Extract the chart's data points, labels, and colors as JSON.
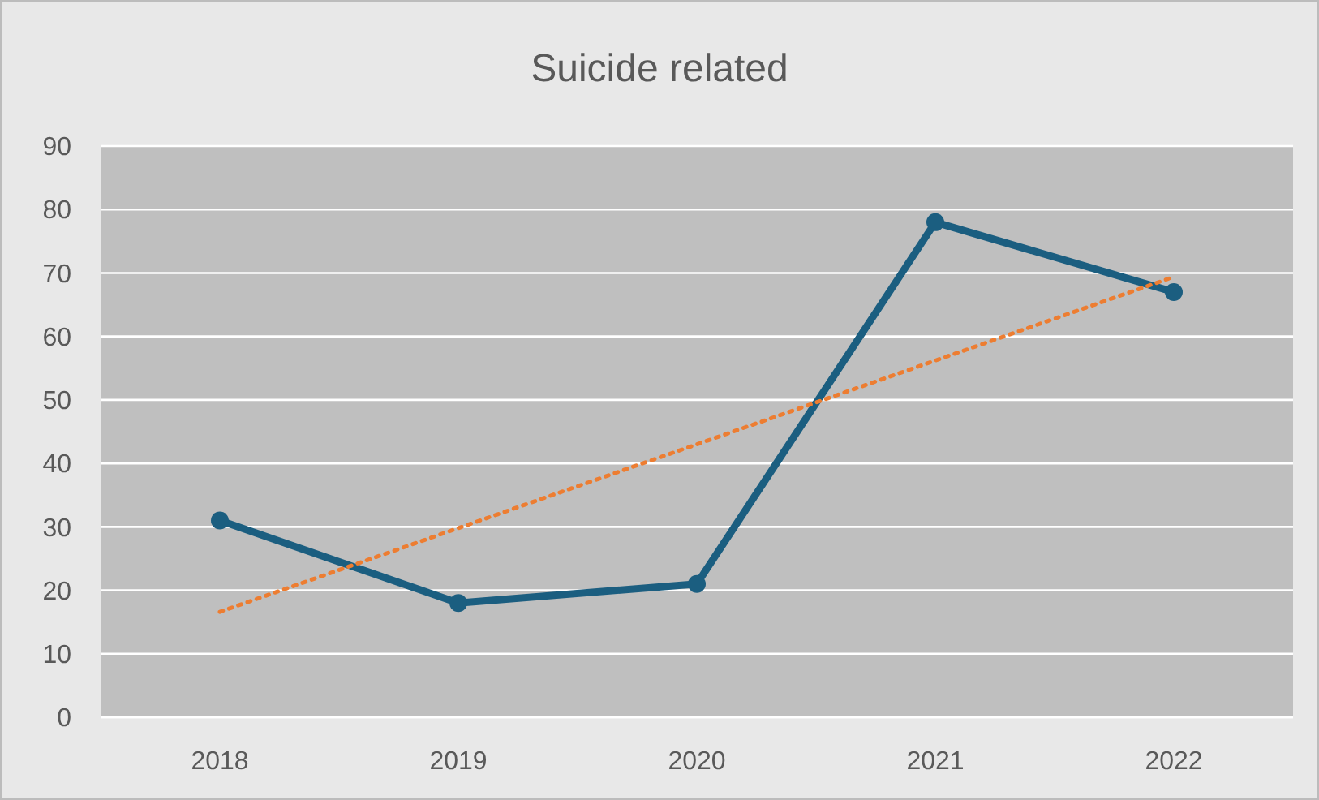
{
  "chart_data": {
    "type": "line",
    "title": "Suicide related",
    "categories": [
      "2018",
      "2019",
      "2020",
      "2021",
      "2022"
    ],
    "series": [
      {
        "color": "#1b5e80",
        "values": [
          31,
          18,
          21,
          78,
          67
        ],
        "marker": "circle",
        "line_style": "solid"
      },
      {
        "type": "line",
        "color": "#ed7d31",
        "values": [
          16.6,
          29.8,
          43,
          56.2,
          69.4
        ],
        "marker": "none",
        "line_style": "dotted"
      }
    ],
    "ylim": [
      0,
      90
    ],
    "yticks": [
      0,
      10,
      20,
      30,
      40,
      50,
      60,
      70,
      80,
      90
    ],
    "grid": "y"
  }
}
